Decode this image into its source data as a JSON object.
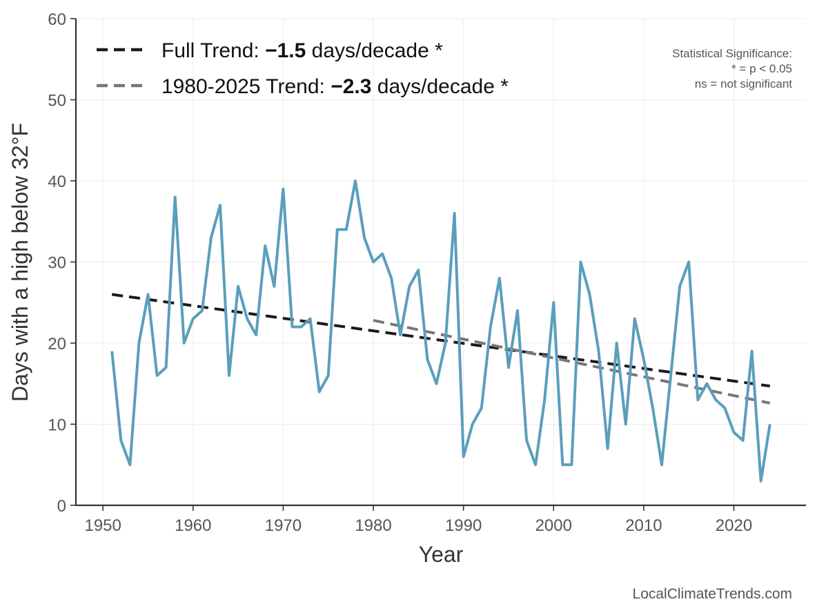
{
  "chart_data": {
    "type": "line",
    "title": "",
    "xlabel": "Year",
    "ylabel": "Days with a high below 32°F",
    "xlim": [
      1947,
      2028
    ],
    "ylim": [
      0,
      60
    ],
    "x_ticks": [
      1950,
      1960,
      1970,
      1980,
      1990,
      2000,
      2010,
      2020
    ],
    "y_ticks": [
      0,
      10,
      20,
      30,
      40,
      50,
      60
    ],
    "grid": true,
    "series": [
      {
        "name": "",
        "color": "#5a9ebc",
        "x": [
          1951,
          1952,
          1953,
          1954,
          1955,
          1956,
          1957,
          1958,
          1959,
          1960,
          1961,
          1962,
          1963,
          1964,
          1965,
          1966,
          1967,
          1968,
          1969,
          1970,
          1971,
          1972,
          1973,
          1974,
          1975,
          1976,
          1977,
          1978,
          1979,
          1980,
          1981,
          1982,
          1983,
          1984,
          1985,
          1986,
          1987,
          1988,
          1989,
          1990,
          1991,
          1992,
          1993,
          1994,
          1995,
          1996,
          1997,
          1998,
          1999,
          2000,
          2001,
          2002,
          2003,
          2004,
          2005,
          2006,
          2007,
          2008,
          2009,
          2010,
          2011,
          2012,
          2013,
          2014,
          2015,
          2016,
          2017,
          2018,
          2019,
          2020,
          2021,
          2022,
          2023,
          2024
        ],
        "values": [
          19,
          8,
          5,
          20,
          26,
          16,
          17,
          38,
          20,
          23,
          24,
          33,
          37,
          16,
          27,
          23,
          21,
          32,
          27,
          39,
          22,
          22,
          23,
          14,
          16,
          34,
          34,
          40,
          33,
          30,
          31,
          28,
          21,
          27,
          29,
          18,
          15,
          20,
          36,
          6,
          10,
          12,
          22,
          28,
          17,
          24,
          8,
          5,
          13,
          25,
          5,
          5,
          30,
          26,
          19,
          7,
          20,
          10,
          23,
          18,
          12,
          5,
          16,
          27,
          30,
          13,
          15,
          13,
          12,
          9,
          8,
          19,
          3,
          10
        ]
      }
    ],
    "trend_lines": [
      {
        "name": "Full Trend",
        "color": "#1a1a1a",
        "x": [
          1951,
          2024
        ],
        "values": [
          26.0,
          14.7
        ]
      },
      {
        "name": "1980-2025 Trend",
        "color": "#777777",
        "x": [
          1980,
          2024
        ],
        "values": [
          22.8,
          12.6
        ]
      }
    ],
    "legend": {
      "placement": "top-left",
      "entries": [
        {
          "prefix": "Full Trend: ",
          "value": "−1.5",
          "suffix": " days/decade *",
          "color": "#1a1a1a"
        },
        {
          "prefix": "1980-2025 Trend: ",
          "value": "−2.3",
          "suffix": " days/decade *",
          "color": "#777777"
        }
      ]
    },
    "significance_note": {
      "placement": "top-right",
      "lines": [
        "Statistical Significance:",
        "* = p < 0.05",
        "ns = not significant"
      ]
    },
    "credit": "LocalClimateTrends.com"
  }
}
